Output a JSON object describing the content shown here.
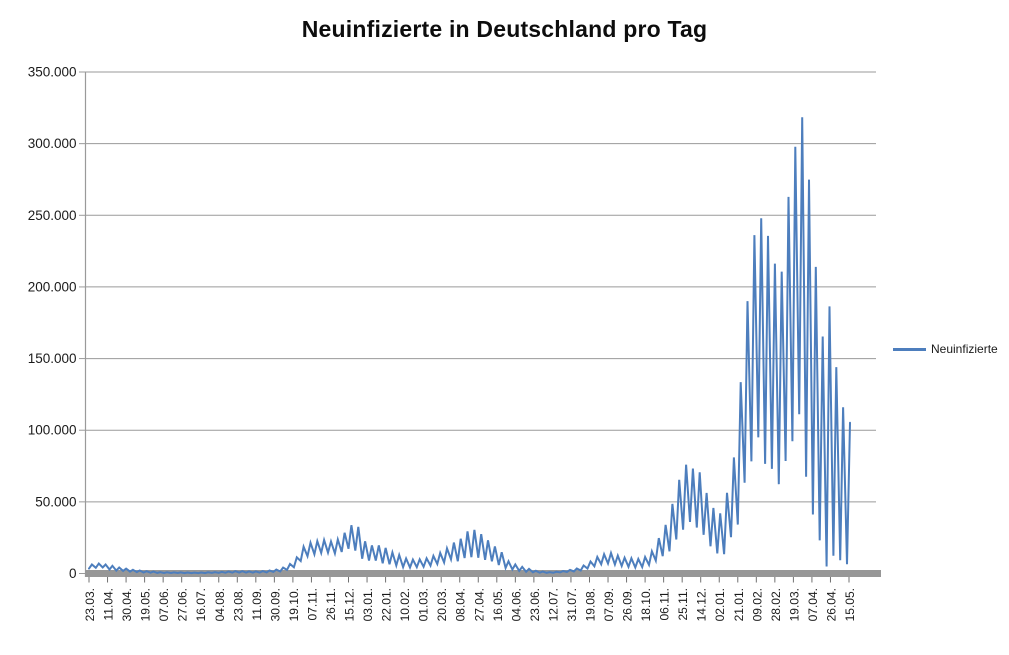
{
  "title": "Neuinfizierte in Deutschland pro Tag",
  "legend": {
    "items": [
      {
        "label": "Neuinfizierte",
        "color": "#4d7ebd"
      }
    ]
  },
  "colors": {
    "series_line": "#4d7ebd",
    "gridline": "#9a9a9a",
    "axis_line": "#9a9a9a",
    "zero_bar": "#979797",
    "tick_mark": "#707070",
    "label_text": "#1a1a1a"
  },
  "chart_data": {
    "type": "line",
    "title": "Neuinfizierte in Deutschland pro Tag",
    "legend_position": "right",
    "grid": true,
    "x_axis": {
      "tick_interval_days": 19,
      "total_days": 779,
      "tick_labels": [
        "23.03.",
        "11.04.",
        "30.04.",
        "19.05.",
        "07.06.",
        "27.06.",
        "16.07.",
        "04.08.",
        "23.08.",
        "11.09.",
        "30.09.",
        "19.10.",
        "07.11.",
        "26.11.",
        "15.12.",
        "03.01.",
        "22.01.",
        "10.02.",
        "01.03.",
        "20.03.",
        "08.04.",
        "27.04.",
        "16.05.",
        "04.06.",
        "23.06.",
        "12.07.",
        "31.07.",
        "19.08.",
        "07.09.",
        "26.09.",
        "18.10.",
        "06.11.",
        "25.11.",
        "14.12.",
        "02.01.",
        "21.01.",
        "09.02.",
        "28.02.",
        "19.03.",
        "07.04.",
        "26.04.",
        "15.05."
      ]
    },
    "y_axis": {
      "min": 0,
      "max": 350000,
      "tick_step": 50000,
      "tick_labels": [
        "0",
        "50.000",
        "100.000",
        "150.000",
        "200.000",
        "250.000",
        "300.000",
        "350.000"
      ]
    },
    "series": [
      {
        "name": "Neuinfizierte",
        "color": "#4d7ebd",
        "points": [
          [
            0,
            3400
          ],
          [
            3,
            6300
          ],
          [
            7,
            4000
          ],
          [
            10,
            6900
          ],
          [
            14,
            4200
          ],
          [
            17,
            6300
          ],
          [
            21,
            2800
          ],
          [
            24,
            5400
          ],
          [
            28,
            2000
          ],
          [
            31,
            4200
          ],
          [
            35,
            1800
          ],
          [
            38,
            3400
          ],
          [
            42,
            1300
          ],
          [
            45,
            2600
          ],
          [
            49,
            1000
          ],
          [
            52,
            2100
          ],
          [
            56,
            700
          ],
          [
            59,
            1600
          ],
          [
            63,
            550
          ],
          [
            66,
            1300
          ],
          [
            70,
            450
          ],
          [
            73,
            1000
          ],
          [
            77,
            380
          ],
          [
            80,
            870
          ],
          [
            84,
            350
          ],
          [
            87,
            800
          ],
          [
            91,
            330
          ],
          [
            94,
            770
          ],
          [
            98,
            300
          ],
          [
            101,
            680
          ],
          [
            105,
            270
          ],
          [
            108,
            630
          ],
          [
            112,
            250
          ],
          [
            115,
            680
          ],
          [
            119,
            300
          ],
          [
            122,
            820
          ],
          [
            126,
            390
          ],
          [
            129,
            950
          ],
          [
            133,
            480
          ],
          [
            136,
            1100
          ],
          [
            140,
            550
          ],
          [
            143,
            1400
          ],
          [
            147,
            650
          ],
          [
            150,
            1600
          ],
          [
            154,
            700
          ],
          [
            157,
            1580
          ],
          [
            161,
            640
          ],
          [
            164,
            1480
          ],
          [
            168,
            600
          ],
          [
            171,
            1500
          ],
          [
            175,
            650
          ],
          [
            178,
            1700
          ],
          [
            182,
            800
          ],
          [
            185,
            2100
          ],
          [
            189,
            1100
          ],
          [
            192,
            2700
          ],
          [
            196,
            1400
          ],
          [
            199,
            4100
          ],
          [
            203,
            2500
          ],
          [
            206,
            6600
          ],
          [
            210,
            4300
          ],
          [
            213,
            11300
          ],
          [
            217,
            8700
          ],
          [
            220,
            18700
          ],
          [
            224,
            12100
          ],
          [
            227,
            21500
          ],
          [
            231,
            13400
          ],
          [
            234,
            22600
          ],
          [
            238,
            14400
          ],
          [
            241,
            23400
          ],
          [
            245,
            14600
          ],
          [
            248,
            22300
          ],
          [
            252,
            14000
          ],
          [
            255,
            23700
          ],
          [
            259,
            15000
          ],
          [
            262,
            28400
          ],
          [
            266,
            17300
          ],
          [
            269,
            33700
          ],
          [
            273,
            16000
          ],
          [
            276,
            32500
          ],
          [
            280,
            10300
          ],
          [
            283,
            22500
          ],
          [
            287,
            9000
          ],
          [
            290,
            19600
          ],
          [
            294,
            9000
          ],
          [
            297,
            19600
          ],
          [
            301,
            7100
          ],
          [
            304,
            17900
          ],
          [
            308,
            6400
          ],
          [
            311,
            14700
          ],
          [
            315,
            5600
          ],
          [
            318,
            12900
          ],
          [
            322,
            4500
          ],
          [
            325,
            10500
          ],
          [
            329,
            4200
          ],
          [
            332,
            9700
          ],
          [
            336,
            4400
          ],
          [
            339,
            9900
          ],
          [
            343,
            4700
          ],
          [
            346,
            10600
          ],
          [
            350,
            5500
          ],
          [
            353,
            12300
          ],
          [
            357,
            6600
          ],
          [
            360,
            14400
          ],
          [
            364,
            7700
          ],
          [
            367,
            17500
          ],
          [
            371,
            9900
          ],
          [
            374,
            21600
          ],
          [
            378,
            8500
          ],
          [
            381,
            24300
          ],
          [
            385,
            10800
          ],
          [
            388,
            29400
          ],
          [
            392,
            11400
          ],
          [
            395,
            30400
          ],
          [
            399,
            11000
          ],
          [
            402,
            27500
          ],
          [
            406,
            9500
          ],
          [
            409,
            23200
          ],
          [
            413,
            8500
          ],
          [
            416,
            18900
          ],
          [
            420,
            5900
          ],
          [
            423,
            14900
          ],
          [
            427,
            3900
          ],
          [
            430,
            8500
          ],
          [
            434,
            2800
          ],
          [
            437,
            6300
          ],
          [
            441,
            1800
          ],
          [
            444,
            4600
          ],
          [
            448,
            1200
          ],
          [
            451,
            3200
          ],
          [
            455,
            840
          ],
          [
            458,
            1900
          ],
          [
            462,
            580
          ],
          [
            465,
            1300
          ],
          [
            469,
            510
          ],
          [
            472,
            1000
          ],
          [
            476,
            550
          ],
          [
            479,
            1200
          ],
          [
            483,
            800
          ],
          [
            486,
            1700
          ],
          [
            490,
            1100
          ],
          [
            493,
            2500
          ],
          [
            497,
            1500
          ],
          [
            500,
            3500
          ],
          [
            504,
            2100
          ],
          [
            507,
            5600
          ],
          [
            511,
            3500
          ],
          [
            514,
            8400
          ],
          [
            518,
            5000
          ],
          [
            521,
            11600
          ],
          [
            525,
            6500
          ],
          [
            528,
            13500
          ],
          [
            532,
            7000
          ],
          [
            535,
            14300
          ],
          [
            539,
            6300
          ],
          [
            542,
            12500
          ],
          [
            546,
            5200
          ],
          [
            549,
            11000
          ],
          [
            553,
            4700
          ],
          [
            556,
            10600
          ],
          [
            560,
            4200
          ],
          [
            563,
            10100
          ],
          [
            567,
            4500
          ],
          [
            570,
            11500
          ],
          [
            574,
            6000
          ],
          [
            577,
            15500
          ],
          [
            581,
            9000
          ],
          [
            584,
            24700
          ],
          [
            588,
            12100
          ],
          [
            591,
            33900
          ],
          [
            595,
            15500
          ],
          [
            598,
            48600
          ],
          [
            602,
            23700
          ],
          [
            605,
            65400
          ],
          [
            609,
            30600
          ],
          [
            612,
            75900
          ],
          [
            616,
            36000
          ],
          [
            619,
            73200
          ],
          [
            623,
            32000
          ],
          [
            626,
            70600
          ],
          [
            630,
            27000
          ],
          [
            633,
            56200
          ],
          [
            637,
            19000
          ],
          [
            640,
            45700
          ],
          [
            644,
            14000
          ],
          [
            647,
            42000
          ],
          [
            651,
            13500
          ],
          [
            654,
            56300
          ],
          [
            658,
            25300
          ],
          [
            661,
            81000
          ],
          [
            665,
            34100
          ],
          [
            668,
            133500
          ],
          [
            672,
            63400
          ],
          [
            675,
            190100
          ],
          [
            679,
            78300
          ],
          [
            682,
            236100
          ],
          [
            686,
            95000
          ],
          [
            689,
            247900
          ],
          [
            693,
            76500
          ],
          [
            696,
            235600
          ],
          [
            700,
            73000
          ],
          [
            703,
            216300
          ],
          [
            707,
            62300
          ],
          [
            710,
            210700
          ],
          [
            714,
            78500
          ],
          [
            717,
            262800
          ],
          [
            721,
            92300
          ],
          [
            724,
            297800
          ],
          [
            728,
            111200
          ],
          [
            731,
            318400
          ],
          [
            735,
            67500
          ],
          [
            738,
            274900
          ],
          [
            742,
            41200
          ],
          [
            745,
            214000
          ],
          [
            749,
            23200
          ],
          [
            752,
            165400
          ],
          [
            756,
            4900
          ],
          [
            759,
            186400
          ],
          [
            763,
            12400
          ],
          [
            766,
            144000
          ],
          [
            770,
            9300
          ],
          [
            773,
            116000
          ],
          [
            777,
            6500
          ],
          [
            780,
            105200
          ]
        ]
      }
    ]
  }
}
